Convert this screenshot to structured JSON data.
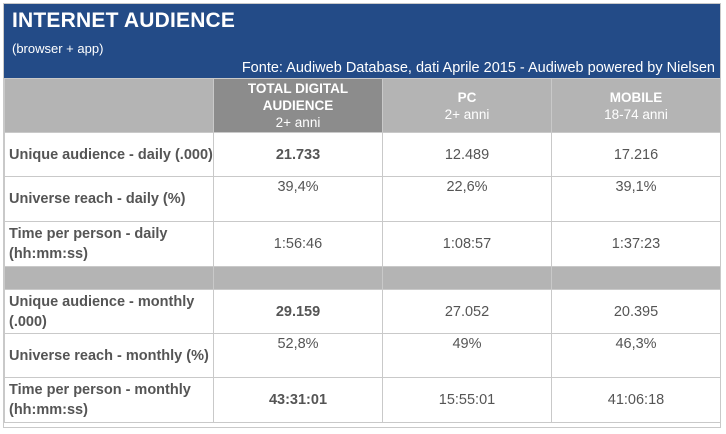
{
  "header": {
    "title": "INTERNET AUDIENCE",
    "subtitle": "(browser + app)",
    "source": "Fonte: Audiweb Database, dati Aprile 2015 - Audiweb powered by Nielsen"
  },
  "columns": [
    {
      "name": "TOTAL DIGITAL AUDIENCE",
      "sub": "2+ anni"
    },
    {
      "name": "PC",
      "sub": "2+ anni"
    },
    {
      "name": "MOBILE",
      "sub": "18-74 anni"
    }
  ],
  "daily": [
    {
      "label": "Unique audience - daily (.000)",
      "values": [
        "21.733",
        "12.489",
        "17.216"
      ]
    },
    {
      "label": "Universe reach - daily (%)",
      "values": [
        "39,4%",
        "22,6%",
        "39,1%"
      ]
    },
    {
      "label": "Time per person - daily (hh:mm:ss)",
      "values": [
        "1:56:46",
        "1:08:57",
        "1:37:23"
      ]
    }
  ],
  "monthly": [
    {
      "label": "Unique audience - monthly (.000)",
      "values": [
        "29.159",
        "27.052",
        "20.395"
      ]
    },
    {
      "label": "Universe reach - monthly (%)",
      "values": [
        "52,8%",
        "49%",
        "46,3%"
      ]
    },
    {
      "label": "Time per person - monthly (hh:mm:ss)",
      "values": [
        "43:31:01",
        "15:55:01",
        "41:06:18"
      ]
    }
  ]
}
